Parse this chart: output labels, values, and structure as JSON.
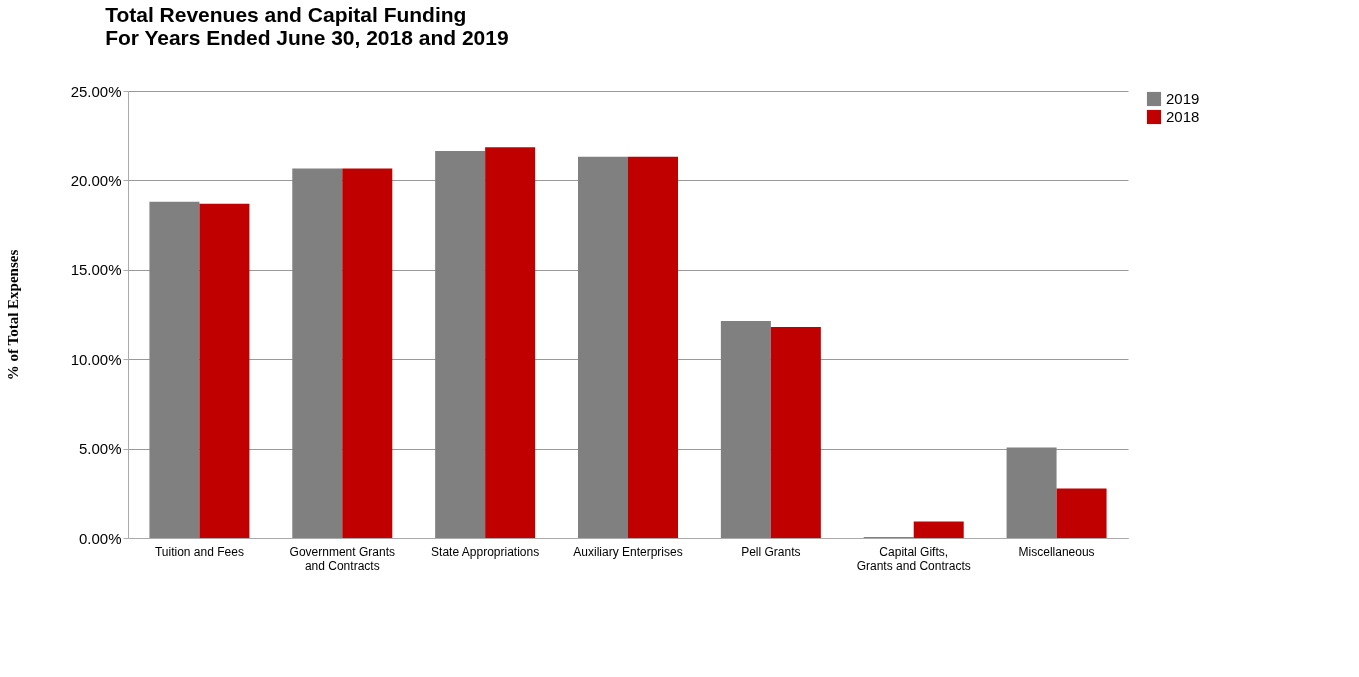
{
  "chart_data": {
    "type": "bar",
    "title": [
      "Total Revenues and Capital Funding",
      "For Years Ended June 30, 2018 and 2019"
    ],
    "ylabel": "% of Total Expenses",
    "categories": [
      "Tuition and Fees",
      "Government Grants and Contracts",
      "State Appropriations",
      "Auxiliary Enterprises",
      "Pell Grants",
      "Capital Gifts, Grants and Contracts",
      "Miscellaneous"
    ],
    "series": [
      {
        "name": "2019",
        "color": "#808080",
        "values": [
          18.81,
          20.67,
          21.64,
          21.32,
          12.13,
          0.06,
          5.06
        ]
      },
      {
        "name": "2018",
        "color": "#c00000",
        "values": [
          18.69,
          20.67,
          21.86,
          21.32,
          11.8,
          0.92,
          2.77
        ]
      }
    ],
    "ylim": [
      0,
      25
    ],
    "yticks": [
      {
        "value": 0,
        "label": "0.00%"
      },
      {
        "value": 5,
        "label": "5.00%"
      },
      {
        "value": 10,
        "label": "10.00%"
      },
      {
        "value": 15,
        "label": "15.00%"
      },
      {
        "value": 20,
        "label": "20.00%"
      },
      {
        "value": 25,
        "label": "25.00%"
      }
    ],
    "grid": "y",
    "legend": "right"
  }
}
